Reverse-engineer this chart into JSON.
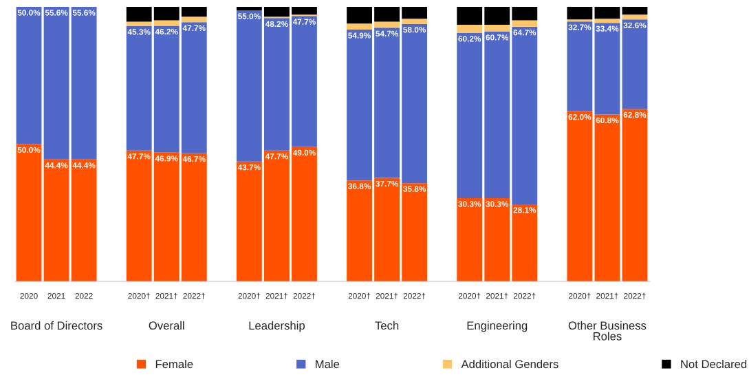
{
  "chart_data": {
    "type": "bar",
    "stacked": true,
    "categories": [
      "2020",
      "2021",
      "2022",
      "2020†",
      "2021†",
      "2022†",
      "2020†",
      "2021†",
      "2022†",
      "2020†",
      "2021†",
      "2022†",
      "2020†",
      "2021†",
      "2022†",
      "2020†",
      "2021†",
      "2022†"
    ],
    "series": [
      {
        "name": "Female",
        "color": "#ff5100",
        "values": [
          50.0,
          44.4,
          44.4,
          47.7,
          46.9,
          46.7,
          43.7,
          47.7,
          49.0,
          36.8,
          37.7,
          35.8,
          30.3,
          30.3,
          28.1,
          62.0,
          60.8,
          62.8
        ],
        "value_labels": [
          "50.0%",
          "44.4%",
          "44.4%",
          "47.7%",
          "46.9%",
          "46.7%",
          "43.7%",
          "47.7%",
          "49.0%",
          "36.8%",
          "37.7%",
          "35.8%",
          "30.3%",
          "30.3%",
          "28.1%",
          "62.0%",
          "60.8%",
          "62.8%"
        ]
      },
      {
        "name": "Male",
        "color": "#5068c8",
        "values": [
          50.0,
          55.6,
          55.6,
          45.3,
          46.2,
          47.7,
          55.0,
          48.2,
          47.7,
          54.9,
          54.7,
          58.0,
          60.2,
          60.7,
          64.7,
          32.7,
          33.4,
          32.6
        ],
        "value_labels": [
          "50.0%",
          "55.6%",
          "55.6%",
          "45.3%",
          "46.2%",
          "47.7%",
          "55.0%",
          "48.2%",
          "47.7%",
          "54.9%",
          "54.7%",
          "58.0%",
          "60.2%",
          "60.7%",
          "64.7%",
          "32.7%",
          "33.4%",
          "32.6%"
        ]
      },
      {
        "name": "Additional Genders",
        "color": "#fcc66b",
        "values": [
          0,
          0,
          0,
          1.6,
          2.0,
          2.0,
          0,
          0.5,
          0.5,
          2.2,
          2.2,
          1.9,
          3.0,
          2.5,
          2.3,
          0.7,
          1.5,
          1.8
        ]
      },
      {
        "name": "Not Declared",
        "color": "#000000",
        "values": [
          0,
          0,
          0,
          5.4,
          4.9,
          3.6,
          1.3,
          3.6,
          2.8,
          6.1,
          5.4,
          4.3,
          6.5,
          6.5,
          4.9,
          4.6,
          4.3,
          2.8
        ]
      }
    ],
    "ylim": [
      0,
      100
    ],
    "tick_labels": "x",
    "legend": "bottom",
    "annotations": [
      "Board of Directors",
      "Overall",
      "Leadership",
      "Tech",
      "Engineering",
      "Other Business\nRoles"
    ]
  }
}
